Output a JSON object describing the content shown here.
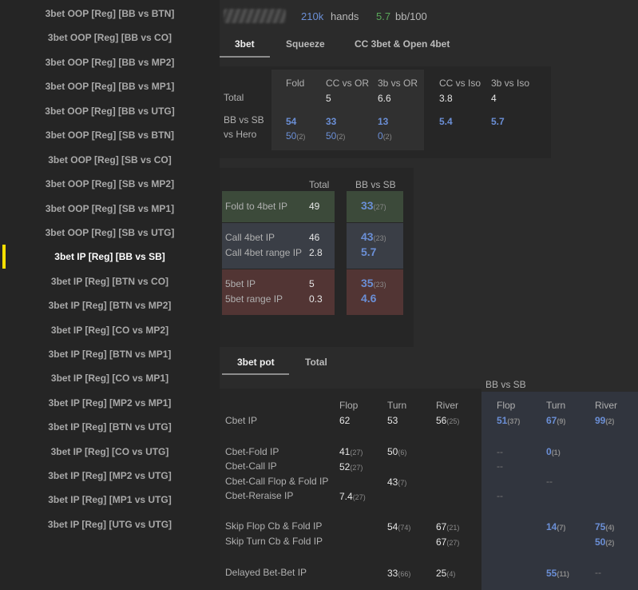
{
  "sidebar": {
    "items": [
      "3bet OOP [Reg] [BB vs BTN]",
      "3bet OOP [Reg] [BB vs CO]",
      "3bet OOP [Reg] [BB vs MP2]",
      "3bet OOP [Reg] [BB vs MP1]",
      "3bet OOP [Reg] [BB vs UTG]",
      "3bet OOP [Reg] [SB vs BTN]",
      "3bet OOP [Reg] [SB vs CO]",
      "3bet OOP [Reg] [SB vs MP2]",
      "3bet OOP [Reg] [SB vs MP1]",
      "3bet OOP [Reg] [SB vs UTG]",
      "3bet IP [Reg] [BB vs SB]",
      "3bet IP [Reg] [BTN vs CO]",
      "3bet IP [Reg] [BTN vs MP2]",
      "3bet IP [Reg] [CO vs MP2]",
      "3bet IP [Reg] [BTN vs MP1]",
      "3bet IP [Reg] [CO vs MP1]",
      "3bet IP [Reg] [MP2 vs MP1]",
      "3bet IP [Reg] [BTN vs UTG]",
      "3bet IP [Reg] [CO vs UTG]",
      "3bet IP [Reg] [MP2 vs UTG]",
      "3bet IP [Reg] [MP1 vs UTG]",
      "3bet IP [Reg] [UTG vs UTG]"
    ],
    "active_index": 10
  },
  "header": {
    "hands_value": "210k",
    "hands_label": "hands",
    "winrate_value": "5.7",
    "winrate_label": "bb/100"
  },
  "tabs_top": [
    "3bet",
    "Squeeze",
    "CC 3bet & Open 4bet"
  ],
  "overview": {
    "columns": [
      "Fold",
      "CC vs OR",
      "3b vs OR",
      "CC vs Iso",
      "3b vs Iso"
    ],
    "total_label": "Total",
    "total_values": [
      "",
      "5",
      "6.6",
      "3.8",
      "4"
    ],
    "bb_label_1": "BB vs SB",
    "bb_label_2": "vs Hero",
    "bb_values": [
      "54",
      "33",
      "13",
      "5.4",
      "5.7"
    ],
    "hero_values": [
      "50",
      "50",
      "0"
    ],
    "hero_subs": [
      "(2)",
      "(2)",
      "(2)"
    ]
  },
  "vs4bet": {
    "col_total": "Total",
    "col_bbsb": "BB vs SB",
    "fold_label": "Fold to 4bet IP",
    "fold_total": "49",
    "fold_bbsb": "33",
    "fold_bbsb_sub": "(27)",
    "call_label": "Call 4bet IP",
    "call_total": "46",
    "call_bbsb": "43",
    "call_bbsb_sub": "(23)",
    "callrange_label": "Call 4bet range IP",
    "callrange_total": "2.8",
    "callrange_bbsb": "5.7",
    "fivebet_label": "5bet IP",
    "fivebet_total": "5",
    "fivebet_bbsb": "35",
    "fivebet_bbsb_sub": "(23)",
    "fivebetrange_label": "5bet range IP",
    "fivebetrange_total": "0.3",
    "fivebetrange_bbsb": "4.6"
  },
  "tabs_bottom": [
    "3bet pot",
    "Total"
  ],
  "postflop": {
    "bbsb_title": "BB vs SB",
    "cols": [
      "Flop",
      "Turn",
      "River"
    ],
    "rows": {
      "cbet": {
        "label": "Cbet IP",
        "flop": "62",
        "turn": "53",
        "river": "56",
        "river_sub": "(25)",
        "b_flop": "51",
        "b_flop_sub": "(37)",
        "b_turn": "67",
        "b_turn_sub": "(9)",
        "b_river": "99",
        "b_river_sub": "(2)"
      },
      "cbet_fold": {
        "label": "Cbet-Fold IP",
        "flop": "41",
        "flop_sub": "(27)",
        "turn": "50",
        "turn_sub": "(6)",
        "b_flop": "--",
        "b_turn": "0",
        "b_turn_sub": "(1)"
      },
      "cbet_call": {
        "label": "Cbet-Call IP",
        "flop": "52",
        "flop_sub": "(27)",
        "b_flop": "--"
      },
      "cbet_call_flop_fold": {
        "label": "Cbet-Call Flop & Fold IP",
        "turn": "43",
        "turn_sub": "(7)",
        "b_turn": "--"
      },
      "cbet_reraise": {
        "label": "Cbet-Reraise IP",
        "flop": "7.4",
        "flop_sub": "(27)",
        "b_flop": "--"
      },
      "skip_flop": {
        "label": "Skip Flop Cb & Fold IP",
        "turn": "54",
        "turn_sub": "(74)",
        "river": "67",
        "river_sub": "(21)",
        "b_turn": "14",
        "b_turn_sub": "(7)",
        "b_river": "75",
        "b_river_sub": "(4)"
      },
      "skip_turn": {
        "label": "Skip Turn Cb & Fold IP",
        "river": "67",
        "river_sub": "(27)",
        "b_river": "50",
        "b_river_sub": "(2)"
      },
      "delayed": {
        "label": "Delayed Bet-Bet IP",
        "turn": "33",
        "turn_sub": "(66)",
        "river": "25",
        "river_sub": "(4)",
        "b_turn": "55",
        "b_turn_sub": "(11)",
        "b_river": "--"
      }
    }
  },
  "colors": {
    "accent_blue": "#6b8fd6",
    "green": "#5aa85a",
    "marker_yellow": "#ffe000",
    "fold_bg": "#3c4a3a",
    "call_bg": "#3a3e46",
    "fivebet_bg": "#523534"
  }
}
